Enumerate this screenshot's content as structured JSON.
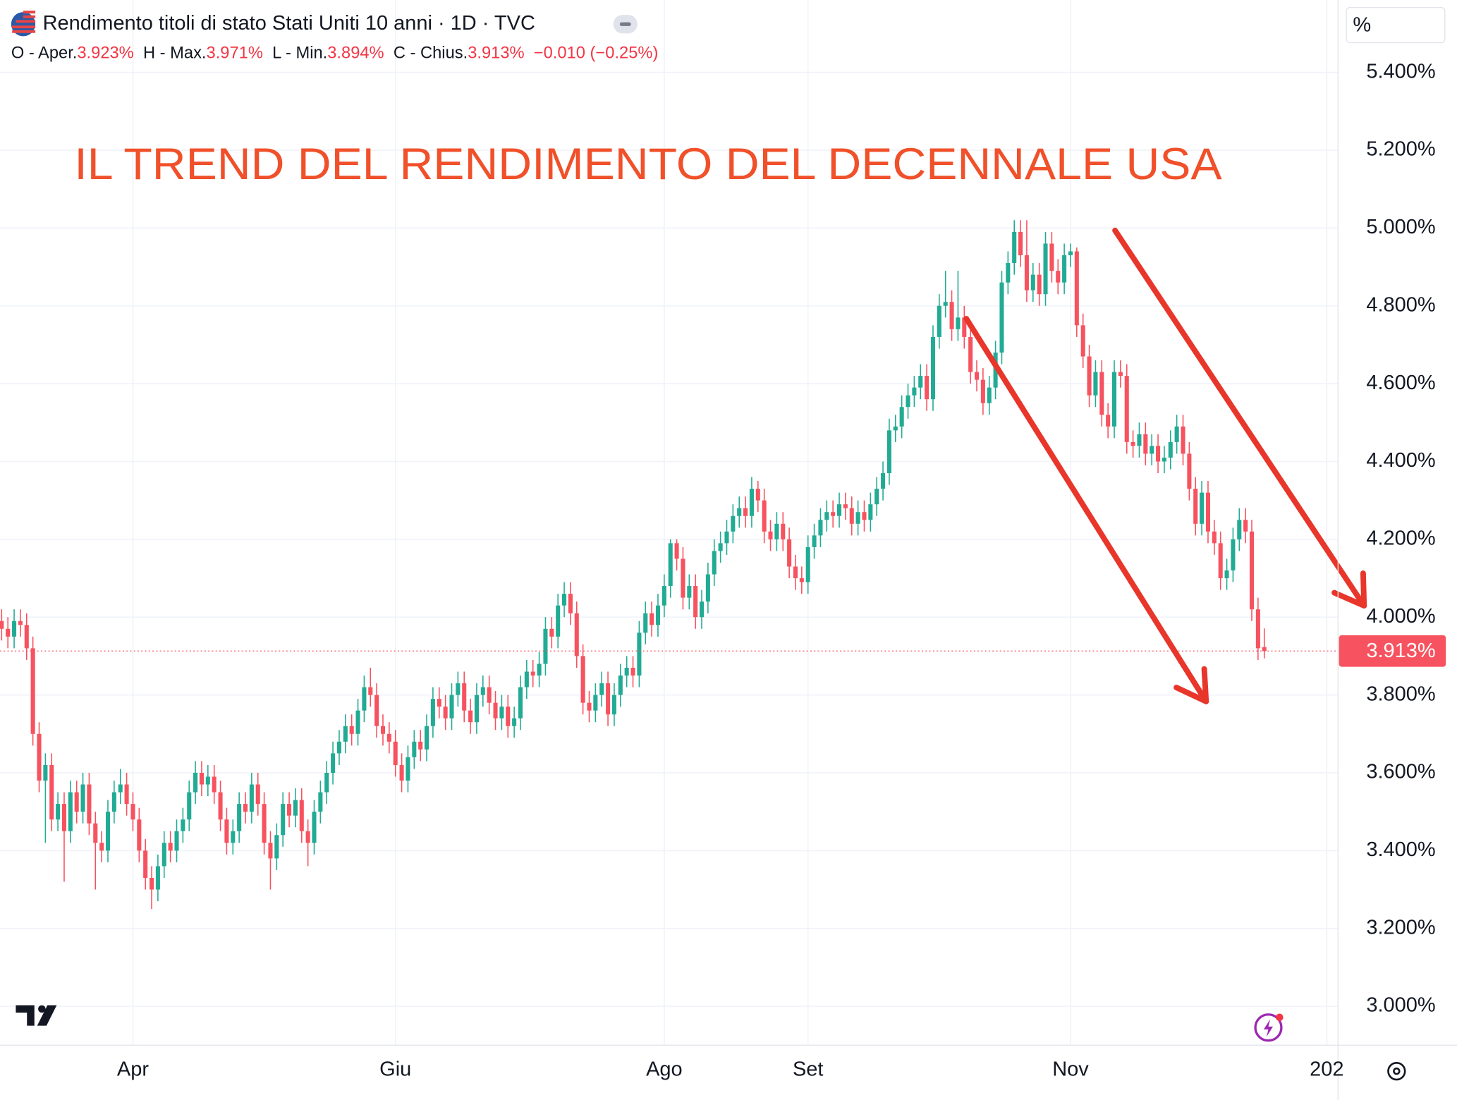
{
  "header": {
    "title": "Rendimento titoli di stato Stati Uniti 10 anni · 1D · TVC",
    "ohlc": [
      {
        "label": "O - Aper.",
        "value": "3.923%"
      },
      {
        "label": "H - Max.",
        "value": "3.971%"
      },
      {
        "label": "L - Min.",
        "value": "3.894%"
      },
      {
        "label": "C - Chius.",
        "value": "3.913%"
      }
    ],
    "change": "−0.010 (−0.25%)",
    "unit": "%"
  },
  "chart_data": {
    "type": "candlestick",
    "annotation": "IL TREND DEL RENDIMENTO DEL DECENNALE USA",
    "up_color": "#22ab94",
    "down_color": "#f7525f",
    "grid": true,
    "xlim": [
      -0.26,
      213.8
    ],
    "ylim": [
      2.9,
      5.586
    ],
    "xticks": [
      {
        "value": 21,
        "label": "Apr"
      },
      {
        "value": 63,
        "label": "Giu"
      },
      {
        "value": 106,
        "label": "Ago"
      },
      {
        "value": 129,
        "label": "Set"
      },
      {
        "value": 171,
        "label": "Nov"
      },
      {
        "value": 212,
        "label": "202"
      }
    ],
    "yticks": [
      {
        "value": 3.0,
        "label": "3.000%"
      },
      {
        "value": 3.2,
        "label": "3.200%"
      },
      {
        "value": 3.4,
        "label": "3.400%"
      },
      {
        "value": 3.6,
        "label": "3.600%"
      },
      {
        "value": 3.8,
        "label": "3.800%"
      },
      {
        "value": 4.0,
        "label": "4.000%"
      },
      {
        "value": 4.2,
        "label": "4.200%"
      },
      {
        "value": 4.4,
        "label": "4.400%"
      },
      {
        "value": 4.6,
        "label": "4.600%"
      },
      {
        "value": 4.8,
        "label": "4.800%"
      },
      {
        "value": 5.0,
        "label": "5.000%"
      },
      {
        "value": 5.2,
        "label": "5.200%"
      },
      {
        "value": 5.4,
        "label": "5.400%"
      }
    ],
    "last_price": {
      "value": 3.913,
      "label": "3.913%"
    },
    "open": [
      3.99,
      3.97,
      3.95,
      3.99,
      3.98,
      3.92,
      3.7,
      3.58,
      3.62,
      3.48,
      3.52,
      3.45,
      3.55,
      3.5,
      3.57,
      3.47,
      3.42,
      3.4,
      3.5,
      3.55,
      3.57,
      3.52,
      3.48,
      3.4,
      3.33,
      3.3,
      3.36,
      3.42,
      3.4,
      3.45,
      3.48,
      3.55,
      3.6,
      3.57,
      3.59,
      3.55,
      3.48,
      3.42,
      3.45,
      3.52,
      3.5,
      3.57,
      3.52,
      3.42,
      3.38,
      3.44,
      3.52,
      3.49,
      3.53,
      3.45,
      3.42,
      3.5,
      3.55,
      3.6,
      3.65,
      3.68,
      3.72,
      3.7,
      3.76,
      3.82,
      3.8,
      3.72,
      3.7,
      3.68,
      3.62,
      3.58,
      3.64,
      3.68,
      3.66,
      3.72,
      3.79,
      3.77,
      3.74,
      3.8,
      3.83,
      3.76,
      3.73,
      3.8,
      3.82,
      3.78,
      3.74,
      3.77,
      3.72,
      3.74,
      3.82,
      3.86,
      3.85,
      3.88,
      3.97,
      3.95,
      4.03,
      4.06,
      4.01,
      3.9,
      3.78,
      3.76,
      3.8,
      3.83,
      3.75,
      3.8,
      3.85,
      3.87,
      3.85,
      3.96,
      4.01,
      3.98,
      4.03,
      4.08,
      4.19,
      4.15,
      4.05,
      4.08,
      4.0,
      4.04,
      4.11,
      4.17,
      4.19,
      4.22,
      4.26,
      4.28,
      4.26,
      4.33,
      4.3,
      4.22,
      4.2,
      4.24,
      4.2,
      4.13,
      4.1,
      4.09,
      4.18,
      4.21,
      4.25,
      4.27,
      4.26,
      4.29,
      4.28,
      4.24,
      4.27,
      4.25,
      4.29,
      4.33,
      4.37,
      4.48,
      4.49,
      4.54,
      4.57,
      4.59,
      4.62,
      4.56,
      4.72,
      4.8,
      4.81,
      4.74,
      4.77,
      4.72,
      4.63,
      4.61,
      4.55,
      4.59,
      4.68,
      4.86,
      4.91,
      4.99,
      4.93,
      4.84,
      4.88,
      4.83,
      4.96,
      4.89,
      4.86,
      4.93,
      4.94,
      4.75,
      4.67,
      4.57,
      4.63,
      4.52,
      4.49,
      4.63,
      4.62,
      4.45,
      4.44,
      4.47,
      4.42,
      4.44,
      4.4,
      4.41,
      4.45,
      4.49,
      4.42,
      4.33,
      4.24,
      4.32,
      4.22,
      4.19,
      4.1,
      4.12,
      4.2,
      4.25,
      4.22,
      4.02,
      3.923
    ],
    "high": [
      4.02,
      4.0,
      4.02,
      4.02,
      4.01,
      3.95,
      3.73,
      3.65,
      3.65,
      3.55,
      3.55,
      3.58,
      3.58,
      3.6,
      3.6,
      3.5,
      3.45,
      3.53,
      3.58,
      3.61,
      3.6,
      3.55,
      3.51,
      3.43,
      3.36,
      3.39,
      3.45,
      3.45,
      3.48,
      3.51,
      3.58,
      3.63,
      3.63,
      3.62,
      3.62,
      3.58,
      3.51,
      3.48,
      3.55,
      3.55,
      3.6,
      3.6,
      3.55,
      3.45,
      3.47,
      3.55,
      3.55,
      3.56,
      3.56,
      3.48,
      3.53,
      3.58,
      3.63,
      3.68,
      3.71,
      3.75,
      3.75,
      3.79,
      3.85,
      3.87,
      3.83,
      3.75,
      3.73,
      3.71,
      3.65,
      3.67,
      3.71,
      3.71,
      3.75,
      3.82,
      3.82,
      3.8,
      3.83,
      3.86,
      3.86,
      3.79,
      3.83,
      3.85,
      3.85,
      3.81,
      3.8,
      3.8,
      3.77,
      3.85,
      3.89,
      3.89,
      3.91,
      4.0,
      4.0,
      4.06,
      4.09,
      4.09,
      4.04,
      3.93,
      3.81,
      3.83,
      3.86,
      3.86,
      3.83,
      3.88,
      3.9,
      3.9,
      3.99,
      4.04,
      4.04,
      4.06,
      4.11,
      4.2,
      4.2,
      4.18,
      4.11,
      4.11,
      4.07,
      4.14,
      4.2,
      4.22,
      4.25,
      4.29,
      4.31,
      4.31,
      4.36,
      4.35,
      4.33,
      4.25,
      4.27,
      4.27,
      4.23,
      4.16,
      4.13,
      4.21,
      4.24,
      4.28,
      4.3,
      4.3,
      4.32,
      4.32,
      4.31,
      4.3,
      4.3,
      4.32,
      4.36,
      4.4,
      4.51,
      4.52,
      4.57,
      4.6,
      4.62,
      4.65,
      4.65,
      4.75,
      4.83,
      4.89,
      4.84,
      4.89,
      4.8,
      4.75,
      4.66,
      4.64,
      4.62,
      4.71,
      4.89,
      4.94,
      5.02,
      5.02,
      5.02,
      4.91,
      4.91,
      4.99,
      4.99,
      4.92,
      4.96,
      4.96,
      4.95,
      4.78,
      4.7,
      4.66,
      4.66,
      4.55,
      4.66,
      4.66,
      4.65,
      4.48,
      4.5,
      4.5,
      4.47,
      4.47,
      4.44,
      4.48,
      4.52,
      4.52,
      4.45,
      4.36,
      4.35,
      4.35,
      4.25,
      4.22,
      4.15,
      4.23,
      4.28,
      4.28,
      4.25,
      4.05,
      3.971
    ],
    "low": [
      3.94,
      3.92,
      3.92,
      3.95,
      3.89,
      3.67,
      3.55,
      3.42,
      3.45,
      3.45,
      3.32,
      3.42,
      3.47,
      3.47,
      3.44,
      3.3,
      3.37,
      3.37,
      3.47,
      3.52,
      3.49,
      3.45,
      3.37,
      3.3,
      3.25,
      3.27,
      3.33,
      3.37,
      3.37,
      3.42,
      3.45,
      3.52,
      3.54,
      3.54,
      3.52,
      3.45,
      3.39,
      3.39,
      3.42,
      3.47,
      3.47,
      3.49,
      3.39,
      3.3,
      3.35,
      3.41,
      3.46,
      3.46,
      3.42,
      3.36,
      3.39,
      3.47,
      3.52,
      3.57,
      3.62,
      3.65,
      3.67,
      3.67,
      3.73,
      3.77,
      3.69,
      3.67,
      3.65,
      3.59,
      3.55,
      3.55,
      3.61,
      3.63,
      3.63,
      3.69,
      3.74,
      3.71,
      3.71,
      3.77,
      3.73,
      3.7,
      3.7,
      3.77,
      3.75,
      3.71,
      3.71,
      3.69,
      3.69,
      3.71,
      3.79,
      3.82,
      3.82,
      3.85,
      3.92,
      3.92,
      4.0,
      3.98,
      3.87,
      3.75,
      3.73,
      3.73,
      3.77,
      3.72,
      3.72,
      3.77,
      3.82,
      3.82,
      3.82,
      3.93,
      3.95,
      3.95,
      4.0,
      4.05,
      4.12,
      4.02,
      4.02,
      3.97,
      3.97,
      4.01,
      4.08,
      4.14,
      4.16,
      4.19,
      4.23,
      4.23,
      4.23,
      4.27,
      4.19,
      4.17,
      4.17,
      4.17,
      4.1,
      4.07,
      4.06,
      4.06,
      4.15,
      4.18,
      4.22,
      4.23,
      4.23,
      4.25,
      4.21,
      4.21,
      4.22,
      4.22,
      4.26,
      4.3,
      4.34,
      4.45,
      4.46,
      4.51,
      4.54,
      4.56,
      4.53,
      4.53,
      4.69,
      4.77,
      4.71,
      4.71,
      4.69,
      4.6,
      4.58,
      4.52,
      4.52,
      4.56,
      4.65,
      4.83,
      4.88,
      4.9,
      4.81,
      4.81,
      4.8,
      4.8,
      4.86,
      4.83,
      4.83,
      4.9,
      4.72,
      4.64,
      4.54,
      4.54,
      4.49,
      4.46,
      4.46,
      4.59,
      4.42,
      4.41,
      4.41,
      4.39,
      4.39,
      4.37,
      4.37,
      4.38,
      4.42,
      4.39,
      4.3,
      4.21,
      4.21,
      4.19,
      4.16,
      4.07,
      4.07,
      4.09,
      4.17,
      4.19,
      3.99,
      3.89,
      3.894
    ],
    "close": [
      3.97,
      3.95,
      3.99,
      3.98,
      3.92,
      3.7,
      3.58,
      3.62,
      3.48,
      3.52,
      3.45,
      3.55,
      3.5,
      3.57,
      3.47,
      3.42,
      3.4,
      3.5,
      3.55,
      3.57,
      3.52,
      3.48,
      3.4,
      3.33,
      3.3,
      3.36,
      3.42,
      3.4,
      3.45,
      3.48,
      3.55,
      3.6,
      3.57,
      3.59,
      3.55,
      3.48,
      3.42,
      3.45,
      3.52,
      3.5,
      3.57,
      3.52,
      3.42,
      3.38,
      3.44,
      3.52,
      3.49,
      3.53,
      3.45,
      3.42,
      3.5,
      3.55,
      3.6,
      3.65,
      3.68,
      3.72,
      3.7,
      3.76,
      3.82,
      3.8,
      3.72,
      3.7,
      3.68,
      3.62,
      3.58,
      3.64,
      3.68,
      3.66,
      3.72,
      3.79,
      3.77,
      3.74,
      3.8,
      3.83,
      3.76,
      3.73,
      3.8,
      3.82,
      3.78,
      3.74,
      3.77,
      3.72,
      3.74,
      3.82,
      3.86,
      3.85,
      3.88,
      3.97,
      3.95,
      4.03,
      4.06,
      4.01,
      3.9,
      3.78,
      3.76,
      3.8,
      3.83,
      3.75,
      3.8,
      3.85,
      3.87,
      3.85,
      3.96,
      4.01,
      3.98,
      4.03,
      4.08,
      4.19,
      4.15,
      4.05,
      4.08,
      4.0,
      4.04,
      4.11,
      4.17,
      4.19,
      4.22,
      4.26,
      4.28,
      4.26,
      4.33,
      4.3,
      4.22,
      4.2,
      4.24,
      4.2,
      4.13,
      4.1,
      4.09,
      4.18,
      4.21,
      4.25,
      4.27,
      4.26,
      4.29,
      4.28,
      4.24,
      4.27,
      4.25,
      4.29,
      4.33,
      4.37,
      4.48,
      4.49,
      4.54,
      4.57,
      4.59,
      4.62,
      4.56,
      4.72,
      4.8,
      4.81,
      4.74,
      4.77,
      4.72,
      4.63,
      4.61,
      4.55,
      4.59,
      4.68,
      4.86,
      4.91,
      4.99,
      4.93,
      4.84,
      4.88,
      4.83,
      4.96,
      4.89,
      4.86,
      4.93,
      4.94,
      4.75,
      4.67,
      4.57,
      4.63,
      4.52,
      4.49,
      4.63,
      4.62,
      4.45,
      4.44,
      4.47,
      4.42,
      4.44,
      4.4,
      4.41,
      4.45,
      4.49,
      4.42,
      4.33,
      4.24,
      4.32,
      4.22,
      4.19,
      4.1,
      4.12,
      4.2,
      4.25,
      4.22,
      4.02,
      3.92,
      3.913
    ]
  }
}
